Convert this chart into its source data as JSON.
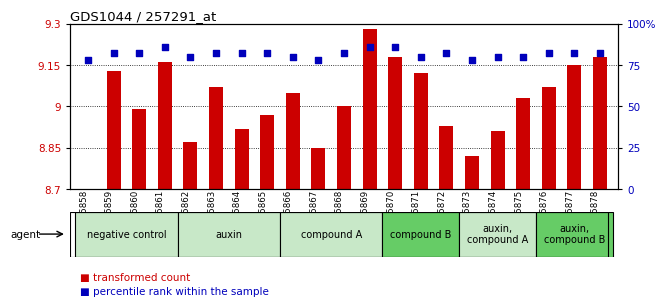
{
  "title": "GDS1044 / 257291_at",
  "samples": [
    "GSM25858",
    "GSM25859",
    "GSM25860",
    "GSM25861",
    "GSM25862",
    "GSM25863",
    "GSM25864",
    "GSM25865",
    "GSM25866",
    "GSM25867",
    "GSM25868",
    "GSM25869",
    "GSM25870",
    "GSM25871",
    "GSM25872",
    "GSM25873",
    "GSM25874",
    "GSM25875",
    "GSM25876",
    "GSM25877",
    "GSM25878"
  ],
  "red_values": [
    8.7,
    9.13,
    8.99,
    9.16,
    8.87,
    9.07,
    8.92,
    8.97,
    9.05,
    8.85,
    9.0,
    9.28,
    9.18,
    9.12,
    8.93,
    8.82,
    8.91,
    9.03,
    9.07,
    9.15,
    9.18
  ],
  "blue_values": [
    78,
    82,
    82,
    86,
    80,
    82,
    82,
    82,
    80,
    78,
    82,
    86,
    86,
    80,
    82,
    78,
    80,
    80,
    82,
    82,
    82
  ],
  "groups": [
    {
      "label": "negative control",
      "start": 0,
      "end": 3,
      "color": "#c8e8c8"
    },
    {
      "label": "auxin",
      "start": 4,
      "end": 7,
      "color": "#c8e8c8"
    },
    {
      "label": "compound A",
      "start": 8,
      "end": 11,
      "color": "#c8e8c8"
    },
    {
      "label": "compound B",
      "start": 12,
      "end": 14,
      "color": "#66cc66"
    },
    {
      "label": "auxin,\ncompound A",
      "start": 15,
      "end": 17,
      "color": "#c8e8c8"
    },
    {
      "label": "auxin,\ncompound B",
      "start": 18,
      "end": 20,
      "color": "#66cc66"
    }
  ],
  "ylim_left": [
    8.7,
    9.3
  ],
  "ylim_right": [
    0,
    100
  ],
  "yticks_left": [
    8.7,
    8.85,
    9.0,
    9.15,
    9.3
  ],
  "ytick_labels_left": [
    "8.7",
    "8.85",
    "9",
    "9.15",
    "9.3"
  ],
  "yticks_right": [
    0,
    25,
    50,
    75,
    100
  ],
  "ytick_labels_right": [
    "0",
    "25",
    "50",
    "75",
    "100%"
  ],
  "bar_color": "#cc0000",
  "dot_color": "#0000bb",
  "bg_color": "#ffffff",
  "plot_bg": "#ffffff"
}
